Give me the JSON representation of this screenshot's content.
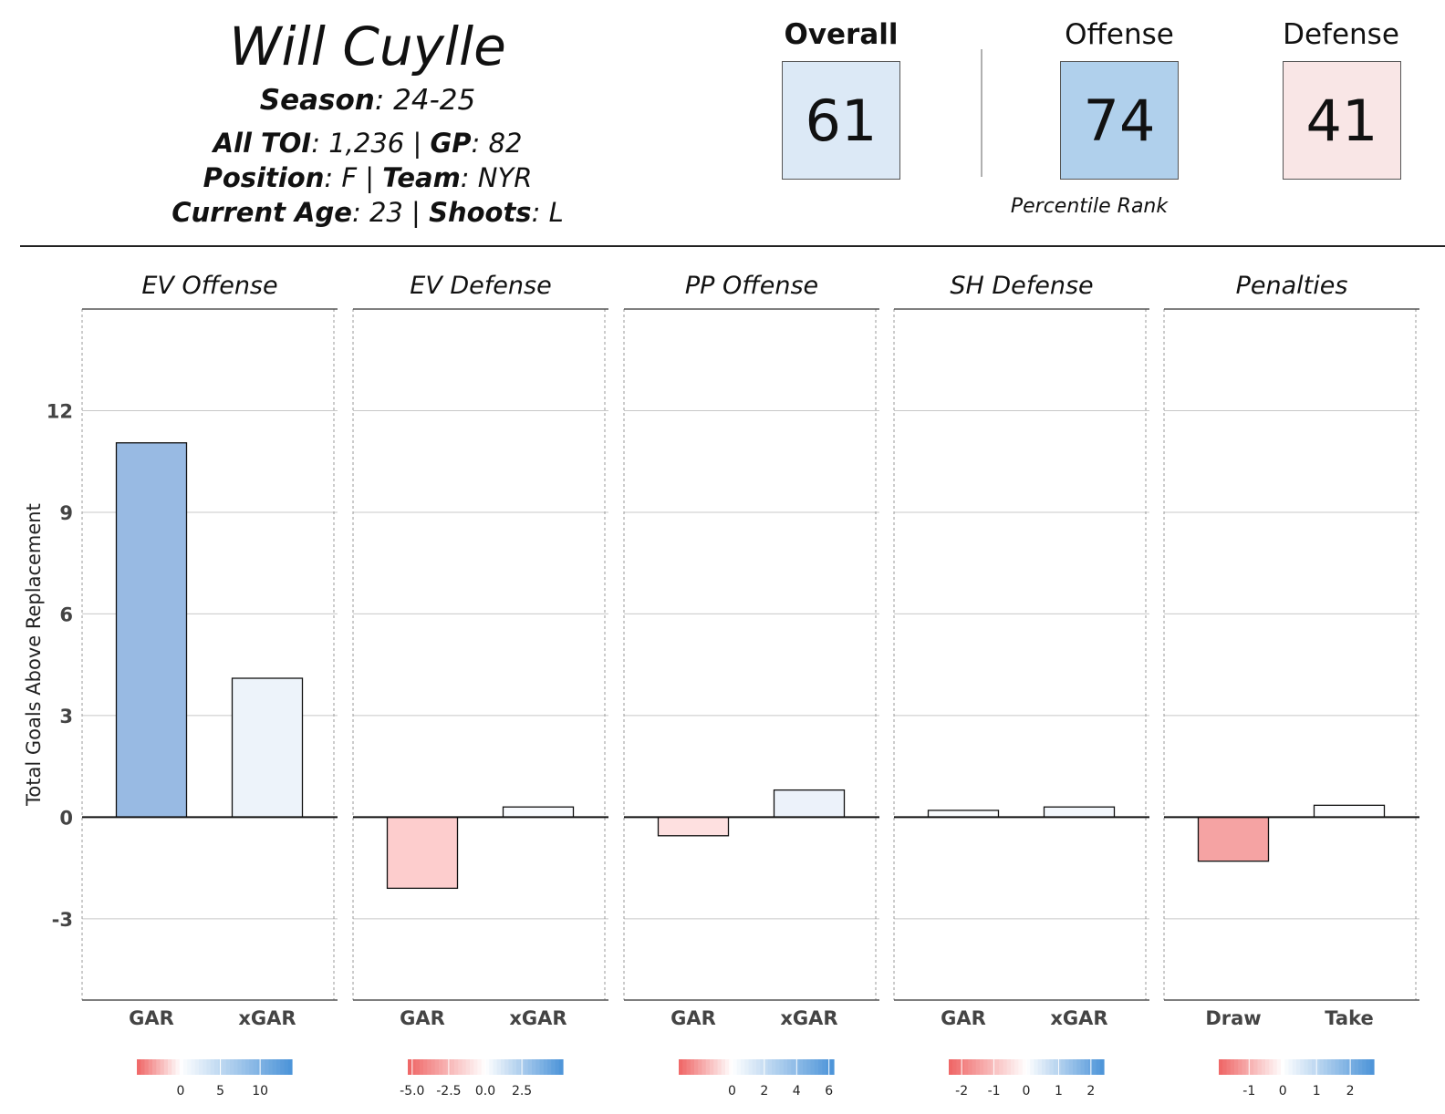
{
  "header": {
    "player_name": "Will Cuylle",
    "season_label": "Season",
    "season": "24-25",
    "toi_label": "All TOI",
    "toi": "1,236",
    "gp_label": "GP",
    "gp": "82",
    "position_label": "Position",
    "position": "F",
    "team_label": "Team",
    "team": "NYR",
    "age_label": "Current Age",
    "age": "23",
    "shoots_label": "Shoots",
    "shoots": "L"
  },
  "scores": {
    "overall_label": "Overall",
    "overall": "61",
    "overall_color": "#dce9f6",
    "offense_label": "Offense",
    "offense": "74",
    "offense_color": "#b0d0ec",
    "defense_label": "Defense",
    "defense": "41",
    "defense_color": "#f9e6e6",
    "footnote": "Percentile Rank"
  },
  "chart_data": {
    "type": "bar",
    "ylabel": "Total Goals Above Replacement",
    "ylim": [
      -5.4,
      15.0
    ],
    "yticks": [
      -3,
      0,
      3,
      6,
      9,
      12
    ],
    "grid": true,
    "panels": [
      {
        "title": "EV Offense",
        "categories": [
          "GAR",
          "xGAR"
        ],
        "values": [
          11.05,
          4.1
        ],
        "colors": [
          "#98bae3",
          "#edf3fa"
        ],
        "legend": {
          "ticks": [
            "0",
            "5",
            "10"
          ],
          "tick_values": [
            0,
            5,
            10
          ],
          "min": -5.5,
          "max": 14
        }
      },
      {
        "title": "EV Defense",
        "categories": [
          "GAR",
          "xGAR"
        ],
        "values": [
          -2.1,
          0.3
        ],
        "colors": [
          "#fdcdcd",
          "#f8fafd"
        ],
        "legend": {
          "ticks": [
            "-5.0",
            "-2.5",
            "0.0",
            "2.5"
          ],
          "tick_values": [
            -5,
            -2.5,
            0,
            2.5
          ],
          "min": -5.3,
          "max": 5.3
        }
      },
      {
        "title": "PP Offense",
        "categories": [
          "GAR",
          "xGAR"
        ],
        "values": [
          -0.55,
          0.8
        ],
        "colors": [
          "#fee0e0",
          "#ecf2fa"
        ],
        "legend": {
          "ticks": [
            "0",
            "2",
            "4",
            "6"
          ],
          "tick_values": [
            0,
            2,
            4,
            6
          ],
          "min": -3.3,
          "max": 6.3
        }
      },
      {
        "title": "SH Defense",
        "categories": [
          "GAR",
          "xGAR"
        ],
        "values": [
          0.2,
          0.3
        ],
        "colors": [
          "#fafcfe",
          "#f3f7fc"
        ],
        "legend": {
          "ticks": [
            "-2",
            "-1",
            "0",
            "1",
            "2"
          ],
          "tick_values": [
            -2,
            -1,
            0,
            1,
            2
          ],
          "min": -2.4,
          "max": 2.4
        }
      },
      {
        "title": "Penalties",
        "categories": [
          "Draw",
          "Take"
        ],
        "values": [
          -1.3,
          0.35
        ],
        "colors": [
          "#f5a3a3",
          "#fbfcfe"
        ],
        "legend": {
          "ticks": [
            "-1",
            "0",
            "1",
            "2"
          ],
          "tick_values": [
            -1,
            0,
            1,
            2
          ],
          "min": -1.9,
          "max": 2.7
        }
      }
    ]
  }
}
